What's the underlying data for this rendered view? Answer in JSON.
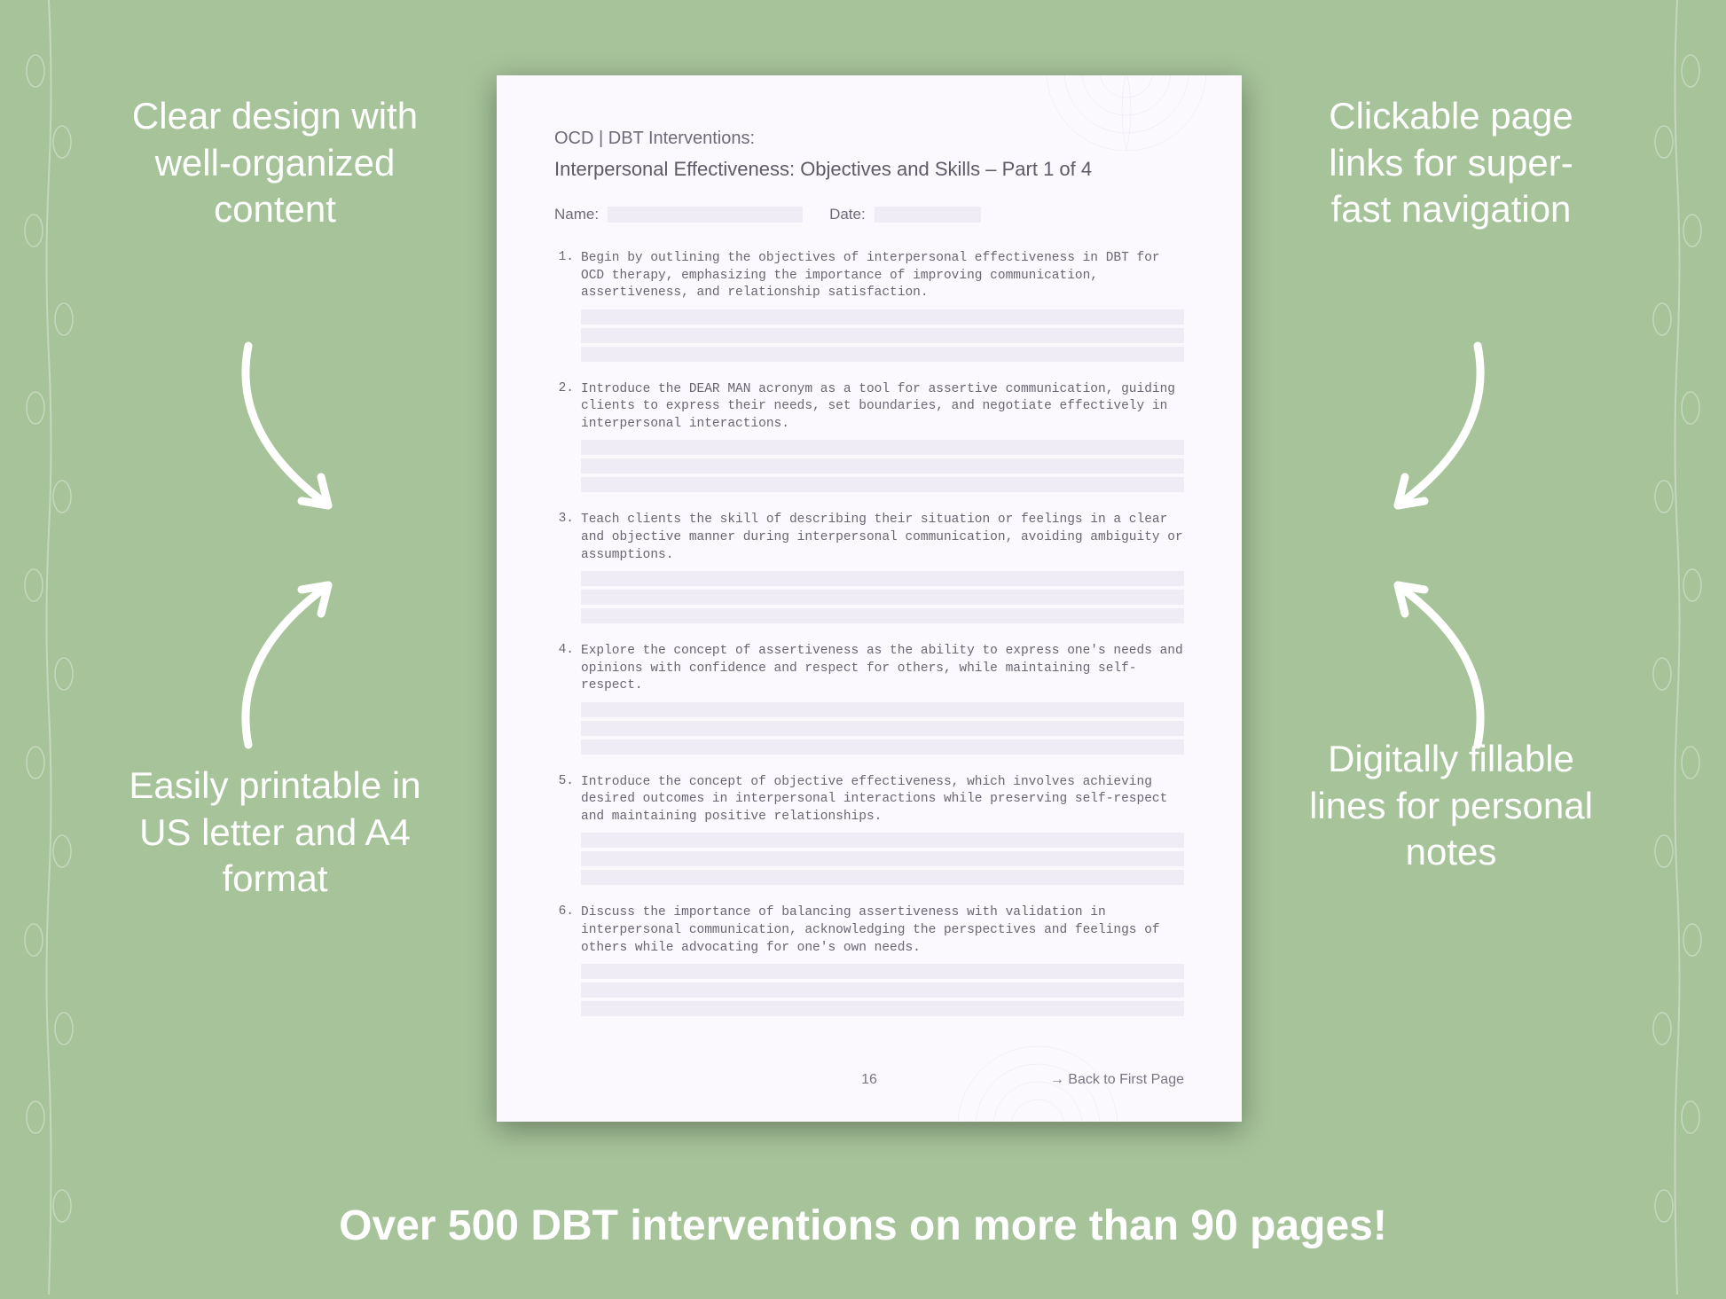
{
  "background_color": "#a6c39a",
  "callouts": {
    "top_left": "Clear design with well-organized content",
    "top_right": "Clickable page links for super-fast navigation",
    "bottom_left": "Easily printable in US letter and A4 format",
    "bottom_right": "Digitally fillable lines for personal notes"
  },
  "bottom_banner": "Over 500 DBT interventions on more than 90 pages!",
  "page": {
    "bg_color": "#fbf9fd",
    "fill_line_color": "#f0ecf6",
    "text_color": "#6a6572",
    "header1": "OCD | DBT Interventions:",
    "header2": "Interpersonal Effectiveness: Objectives and Skills – Part 1 of 4",
    "name_label": "Name:",
    "date_label": "Date:",
    "items": [
      {
        "n": "1.",
        "t": "Begin by outlining the objectives of interpersonal effectiveness in DBT for OCD therapy, emphasizing the importance of improving communication, assertiveness, and relationship satisfaction."
      },
      {
        "n": "2.",
        "t": "Introduce the DEAR MAN acronym as a tool for assertive communication, guiding clients to express their needs, set boundaries, and negotiate effectively in interpersonal interactions."
      },
      {
        "n": "3.",
        "t": "Teach clients the skill of describing their situation or feelings in a clear and objective manner during interpersonal communication, avoiding ambiguity or assumptions."
      },
      {
        "n": "4.",
        "t": "Explore the concept of assertiveness as the ability to express one's needs and opinions with confidence and respect for others, while maintaining self-respect."
      },
      {
        "n": "5.",
        "t": "Introduce the concept of objective effectiveness, which involves achieving desired outcomes in interpersonal interactions while preserving self-respect and maintaining positive relationships."
      },
      {
        "n": "6.",
        "t": "Discuss the importance of balancing assertiveness with validation in interpersonal communication, acknowledging the perspectives and feelings of others while advocating for one's own needs."
      }
    ],
    "page_number": "16",
    "back_link": "→ Back to First Page"
  },
  "style": {
    "callout_color": "#ffffff",
    "callout_fontsize": 42,
    "banner_fontsize": 48,
    "arrow_color": "#ffffff"
  }
}
